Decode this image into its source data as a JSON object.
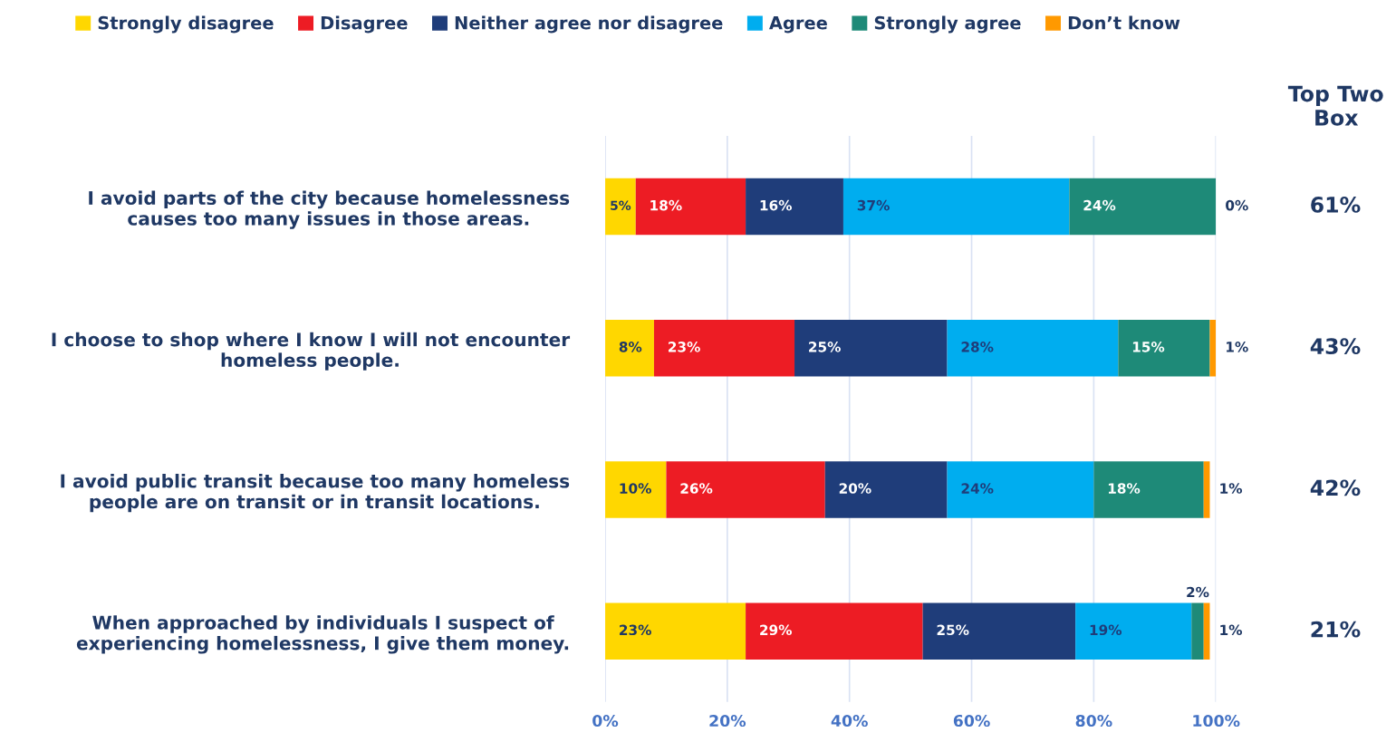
{
  "chart_data": {
    "type": "bar",
    "orientation": "horizontal",
    "stacked": true,
    "categories": [
      "I avoid parts of the city because homelessness\ncauses too many issues in those areas.",
      "I choose to shop where I know I will not encounter\nhomeless people.",
      "I avoid public transit because too many homeless\npeople are on transit or in transit locations.",
      "When approached by individuals I suspect of\nexperiencing homelessness, I give them money."
    ],
    "series": [
      {
        "name": "Strongly disagree",
        "color": "#ffd700",
        "values": [
          5,
          8,
          10,
          23
        ],
        "value_labels": [
          "5%",
          "8%",
          "10%",
          "23%"
        ]
      },
      {
        "name": "Disagree",
        "color": "#ed1c24",
        "values": [
          18,
          23,
          26,
          29
        ],
        "value_labels": [
          "18%",
          "23%",
          "26%",
          "29%"
        ]
      },
      {
        "name": "Neither agree nor disagree",
        "color": "#1f3d7a",
        "values": [
          16,
          25,
          20,
          25
        ],
        "value_labels": [
          "16%",
          "25%",
          "20%",
          "25%"
        ]
      },
      {
        "name": "Agree",
        "color": "#00adef",
        "values": [
          37,
          28,
          24,
          19
        ],
        "value_labels": [
          "37%",
          "28%",
          "24%",
          "19%"
        ]
      },
      {
        "name": "Strongly agree",
        "color": "#1e8a78",
        "values": [
          24,
          15,
          18,
          2
        ],
        "value_labels": [
          "24%",
          "15%",
          "18%",
          "2%"
        ]
      },
      {
        "name": "Don’t know",
        "color": "#ff9900",
        "values": [
          0,
          1,
          1,
          1
        ],
        "value_labels": [
          "0%",
          "1%",
          "1%",
          "1%"
        ]
      }
    ],
    "xlim": [
      0,
      100
    ],
    "xticks": [
      {
        "value": 0,
        "label": "0%"
      },
      {
        "value": 20,
        "label": "20%"
      },
      {
        "value": 40,
        "label": "40%"
      },
      {
        "value": 60,
        "label": "60%"
      },
      {
        "value": 80,
        "label": "80%"
      },
      {
        "value": 100,
        "label": "100%"
      }
    ],
    "grid": "x",
    "legend": "top",
    "annotations": [
      "Top Two\nBox",
      "61%",
      "43%",
      "42%",
      "21%"
    ]
  }
}
